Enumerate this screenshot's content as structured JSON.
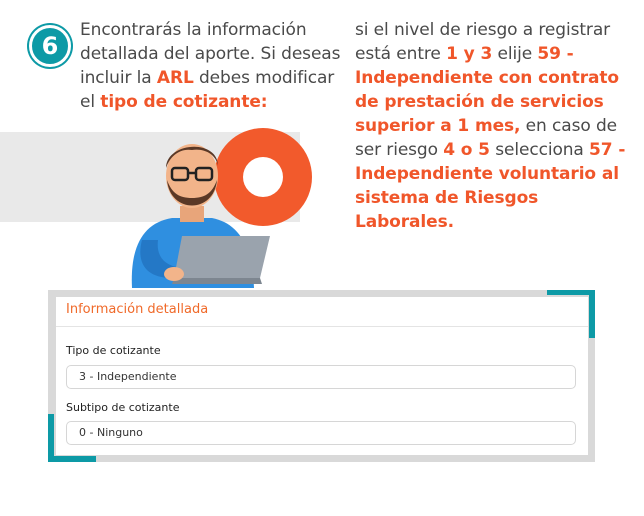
{
  "step": {
    "number": "6"
  },
  "instructions": {
    "left": [
      {
        "t": "Encontrarás la información detallada del aporte. Si deseas incluir la ",
        "h": false
      },
      {
        "t": "ARL",
        "h": true
      },
      {
        "t": " debes modificar el ",
        "h": false
      },
      {
        "t": "tipo de cotizante:",
        "h": true
      }
    ],
    "right": [
      {
        "t": "si el nivel de riesgo a registrar está entre ",
        "h": false
      },
      {
        "t": "1 y 3",
        "h": true
      },
      {
        "t": " elije ",
        "h": false
      },
      {
        "t": "59 - Independiente con contrato de prestación de servicios superior a 1 mes,",
        "h": true
      },
      {
        "t": " en caso de ser riesgo ",
        "h": false
      },
      {
        "t": "4 o 5",
        "h": true
      },
      {
        "t": " selecciona ",
        "h": false
      },
      {
        "t": "57 - Independiente voluntario al sistema de Riesgos Laborales.",
        "h": true
      }
    ]
  },
  "form": {
    "title": "Información detallada",
    "tipo_label": "Tipo de cotizante",
    "tipo_value": "3 - Independiente",
    "subtipo_label": "Subtipo de cotizante",
    "subtipo_value": "0 - Ninguno"
  },
  "colors": {
    "accent": "#f0562a",
    "teal": "#0d9aa6"
  },
  "icons": [
    "person-with-laptop-illustration",
    "orange-ring-decoration"
  ]
}
